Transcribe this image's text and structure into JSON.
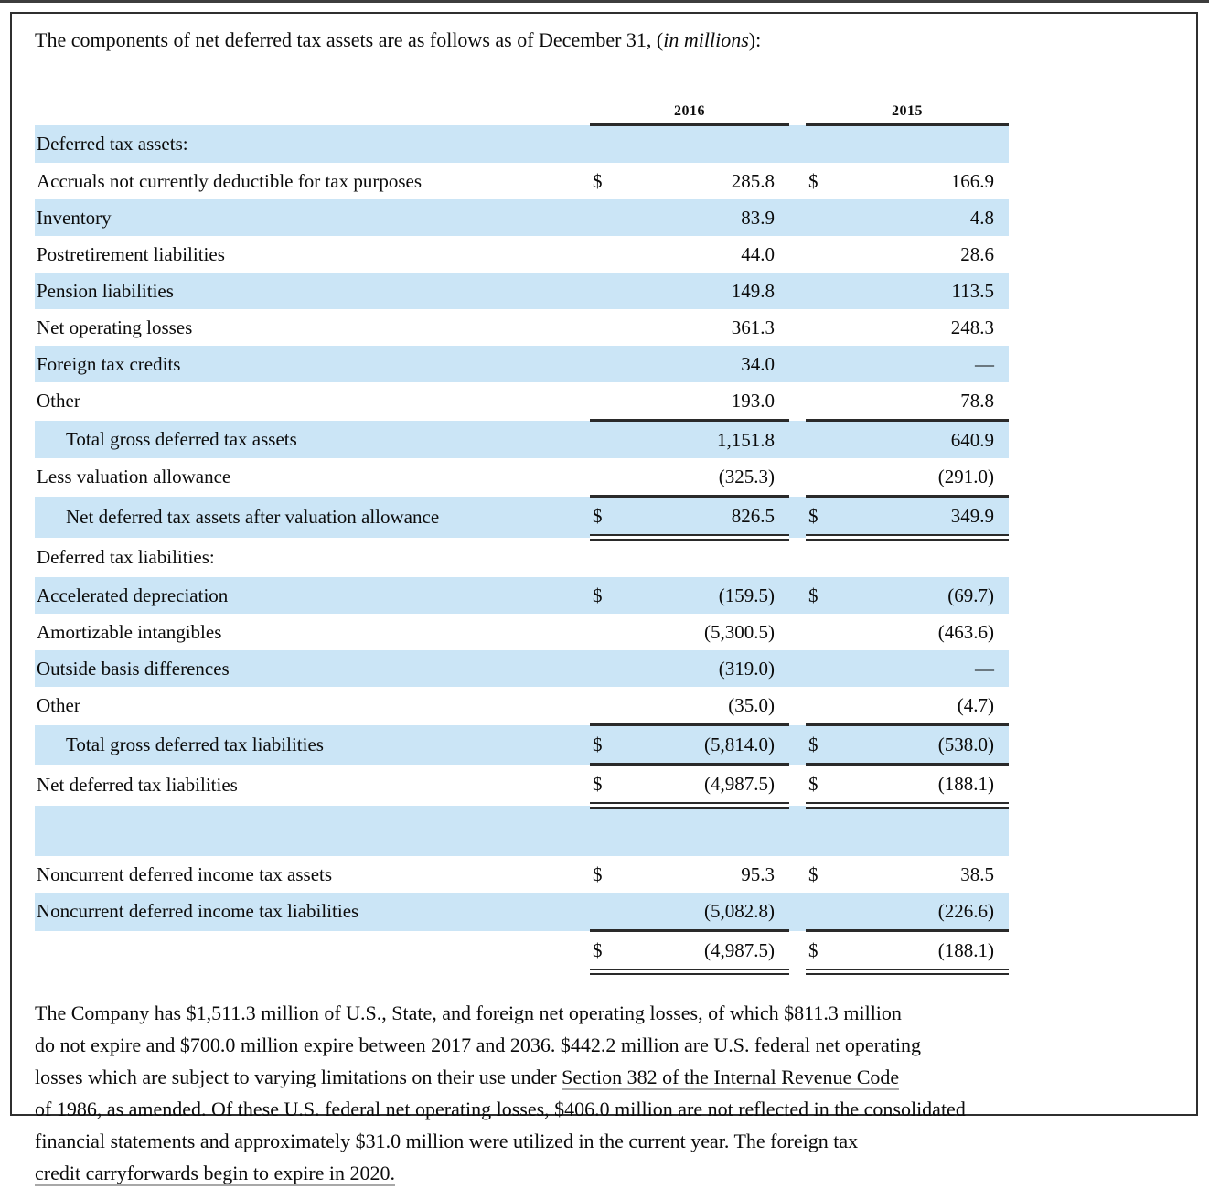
{
  "colors": {
    "row_highlight": "#cbe5f6",
    "rule_line": "#2a2a2a"
  },
  "intro": {
    "segments": [
      {
        "text": "The components of net deferred tax assets are as follows as of December 31, (",
        "italic": false
      },
      {
        "text": "in millions",
        "italic": true
      },
      {
        "text": "):",
        "italic": false
      }
    ]
  },
  "table": {
    "columns": [
      "2016",
      "2015"
    ],
    "rows": [
      {
        "label": "Deferred tax assets:",
        "d1": "",
        "v1": "",
        "d2": "",
        "v2": "",
        "bg": "blue"
      },
      {
        "label": "Accruals not currently deductible for tax purposes",
        "d1": "$",
        "v1": "285.8",
        "d2": "$",
        "v2": "166.9",
        "bg": "white"
      },
      {
        "label": "Inventory",
        "d1": "",
        "v1": "83.9",
        "d2": "",
        "v2": "4.8",
        "bg": "blue"
      },
      {
        "label": "Postretirement liabilities",
        "d1": "",
        "v1": "44.0",
        "d2": "",
        "v2": "28.6",
        "bg": "white"
      },
      {
        "label": "Pension liabilities",
        "d1": "",
        "v1": "149.8",
        "d2": "",
        "v2": "113.5",
        "bg": "blue"
      },
      {
        "label": "Net operating losses",
        "d1": "",
        "v1": "361.3",
        "d2": "",
        "v2": "248.3",
        "bg": "white"
      },
      {
        "label": "Foreign tax credits",
        "d1": "",
        "v1": "34.0",
        "d2": "",
        "v2": "—",
        "bg": "blue"
      },
      {
        "label": "Other",
        "d1": "",
        "v1": "193.0",
        "d2": "",
        "v2": "78.8",
        "bg": "white"
      },
      {
        "label": "Total gross deferred tax assets",
        "indent": true,
        "d1": "",
        "v1": "1,151.8",
        "d2": "",
        "v2": "640.9",
        "bg": "blue",
        "bt": true
      },
      {
        "label": "Less valuation allowance",
        "d1": "",
        "v1": "(325.3)",
        "d2": "",
        "v2": "(291.0)",
        "bg": "white"
      },
      {
        "label": "Net deferred tax assets after valuation allowance",
        "indent": true,
        "d1": "$",
        "v1": "826.5",
        "d2": "$",
        "v2": "349.9",
        "bg": "blue",
        "bt": true,
        "dbb": true
      },
      {
        "label": "Deferred tax liabilities:",
        "d1": "",
        "v1": "",
        "d2": "",
        "v2": "",
        "bg": "white"
      },
      {
        "label": "Accelerated depreciation",
        "d1": "$",
        "v1": "(159.5)",
        "d2": "$",
        "v2": "(69.7)",
        "bg": "blue"
      },
      {
        "label": "Amortizable intangibles",
        "d1": "",
        "v1": "(5,300.5)",
        "d2": "",
        "v2": "(463.6)",
        "bg": "white"
      },
      {
        "label": "Outside basis differences",
        "d1": "",
        "v1": "(319.0)",
        "d2": "",
        "v2": "—",
        "bg": "blue"
      },
      {
        "label": "Other",
        "d1": "",
        "v1": "(35.0)",
        "d2": "",
        "v2": "(4.7)",
        "bg": "white"
      },
      {
        "label": "Total gross deferred tax liabilities",
        "indent": true,
        "d1": "$",
        "v1": "(5,814.0)",
        "d2": "$",
        "v2": "(538.0)",
        "bg": "blue",
        "bt": true,
        "bb": true
      },
      {
        "label": "Net deferred tax liabilities",
        "d1": "$",
        "v1": "(4,987.5)",
        "d2": "$",
        "v2": "(188.1)",
        "bg": "white",
        "dbb": true
      },
      {
        "label": "",
        "d1": "",
        "v1": "",
        "d2": "",
        "v2": "",
        "bg": "blue",
        "spacer": true
      },
      {
        "label": "Noncurrent deferred income tax assets",
        "d1": "$",
        "v1": "95.3",
        "d2": "$",
        "v2": "38.5",
        "bg": "white"
      },
      {
        "label": "Noncurrent deferred income tax liabilities",
        "d1": "",
        "v1": "(5,082.8)",
        "d2": "",
        "v2": "(226.6)",
        "bg": "blue",
        "bb": true
      },
      {
        "label": "",
        "d1": "$",
        "v1": "(4,987.5)",
        "d2": "$",
        "v2": "(188.1)",
        "bg": "white",
        "dbb": true
      }
    ]
  },
  "footnote": {
    "lines": [
      [
        {
          "text": "The Company has $1,511.3 million of U.S., State, and foreign net operating losses, of which $811.3 million",
          "underline": false
        }
      ],
      [
        {
          "text": "do not expire and $700.0 million expire between 2017 and 2036. $442.2 million are U.S. federal net operating",
          "underline": false
        }
      ],
      [
        {
          "text": "losses which are subject to varying limitations on their use under ",
          "underline": false
        },
        {
          "text": "Section 382 of the Internal Revenue Code",
          "underline": true
        }
      ],
      [
        {
          "text": "of 1986, as amended. Of these U.S. federal net operating losses, $406.0 million are not reflected in the consolidated",
          "underline": false
        }
      ],
      [
        {
          "text": "financial statements and approximately $31.0 million were utilized in the current year. The foreign tax",
          "underline": false
        }
      ],
      [
        {
          "text": "credit carryforwards begin to expire in 2020.",
          "underline": true
        }
      ]
    ]
  }
}
